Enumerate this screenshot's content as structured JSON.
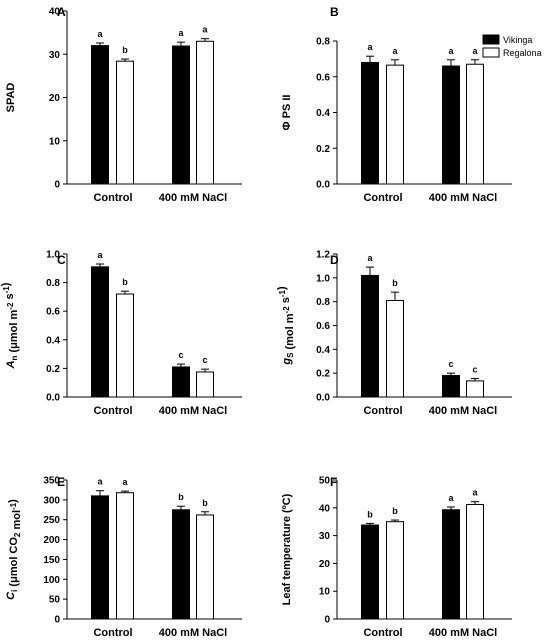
{
  "legend": [
    {
      "name": "Vikinga",
      "color": "#000000"
    },
    {
      "name": "Regalona",
      "color": "#ffffff"
    }
  ],
  "chart_data": [
    {
      "type": "bar",
      "panel": "A",
      "ylabel": "SPAD",
      "categories": [
        "Control",
        "400 mM NaCl"
      ],
      "ylim": [
        0,
        40
      ],
      "yticks": [
        0,
        10,
        20,
        30,
        40
      ],
      "yticklabels": [
        "0",
        "10",
        "20",
        "30",
        "40"
      ],
      "series": [
        {
          "name": "Vikinga",
          "values": [
            32.0,
            31.9
          ],
          "errors": [
            0.6,
            0.9
          ],
          "letters": [
            "a",
            "a"
          ]
        },
        {
          "name": "Regalona",
          "values": [
            28.4,
            33.0
          ],
          "errors": [
            0.5,
            0.6
          ],
          "letters": [
            "b",
            "a"
          ]
        }
      ]
    },
    {
      "type": "bar",
      "panel": "B",
      "ylabel": "Φ PS II",
      "categories": [
        "Control",
        "400 mM NaCl"
      ],
      "ylim": [
        0,
        0.8
      ],
      "yticks": [
        0,
        0.2,
        0.4,
        0.6,
        0.8
      ],
      "yticklabels": [
        "0.0",
        "0.2",
        "0.4",
        "0.6",
        "0.8"
      ],
      "legend_position": "top-right",
      "series": [
        {
          "name": "Vikinga",
          "values": [
            0.68,
            0.66
          ],
          "errors": [
            0.035,
            0.035
          ],
          "letters": [
            "a",
            "a"
          ]
        },
        {
          "name": "Regalona",
          "values": [
            0.665,
            0.67
          ],
          "errors": [
            0.03,
            0.025
          ],
          "letters": [
            "a",
            "a"
          ]
        }
      ]
    },
    {
      "type": "bar",
      "panel": "C",
      "ylabel_parts": [
        [
          "A",
          "i"
        ],
        [
          "n",
          "sub"
        ],
        [
          " (μmol m",
          ""
        ],
        [
          "-2",
          "sup"
        ],
        [
          " s",
          ""
        ],
        [
          "-1",
          "sup"
        ],
        [
          ")",
          ""
        ]
      ],
      "categories": [
        "Control",
        "400 mM NaCl"
      ],
      "ylim": [
        0,
        1.0
      ],
      "yticks": [
        0,
        0.2,
        0.4,
        0.6,
        0.8,
        1.0
      ],
      "yticklabels": [
        "0.0",
        "0.2",
        "0.4",
        "0.6",
        "0.8",
        "1.0"
      ],
      "series": [
        {
          "name": "Vikinga",
          "values": [
            0.91,
            0.21
          ],
          "errors": [
            0.02,
            0.02
          ],
          "letters": [
            "a",
            "c"
          ]
        },
        {
          "name": "Regalona",
          "values": [
            0.72,
            0.175
          ],
          "errors": [
            0.02,
            0.02
          ],
          "letters": [
            "b",
            "c"
          ]
        }
      ]
    },
    {
      "type": "bar",
      "panel": "D",
      "ylabel_parts": [
        [
          "g",
          "i"
        ],
        [
          "S",
          "sub"
        ],
        [
          " (mol m",
          ""
        ],
        [
          "-2",
          "sup"
        ],
        [
          " s",
          ""
        ],
        [
          "-1",
          "sup"
        ],
        [
          ")",
          ""
        ]
      ],
      "categories": [
        "Control",
        "400 mM NaCl"
      ],
      "ylim": [
        0,
        1.2
      ],
      "yticks": [
        0,
        0.2,
        0.4,
        0.6,
        0.8,
        1.0,
        1.2
      ],
      "yticklabels": [
        "0.0",
        "0.2",
        "0.4",
        "0.6",
        "0.8",
        "1.0",
        "1.2"
      ],
      "series": [
        {
          "name": "Vikinga",
          "values": [
            1.02,
            0.18
          ],
          "errors": [
            0.07,
            0.02
          ],
          "letters": [
            "a",
            "c"
          ]
        },
        {
          "name": "Regalona",
          "values": [
            0.81,
            0.135
          ],
          "errors": [
            0.07,
            0.02
          ],
          "letters": [
            "b",
            "c"
          ]
        }
      ]
    },
    {
      "type": "bar",
      "panel": "E",
      "ylabel_parts": [
        [
          "C",
          "i"
        ],
        [
          "i",
          "sub"
        ],
        [
          " (μmol CO",
          ""
        ],
        [
          "2",
          "sub"
        ],
        [
          " mol",
          ""
        ],
        [
          "-1",
          "sup"
        ],
        [
          ")",
          ""
        ]
      ],
      "categories": [
        "Control",
        "400 mM NaCl"
      ],
      "ylim": [
        0,
        350
      ],
      "yticks": [
        0,
        50,
        100,
        150,
        200,
        250,
        300,
        350
      ],
      "yticklabels": [
        "0",
        "50",
        "100",
        "150",
        "200",
        "250",
        "300",
        "350"
      ],
      "series": [
        {
          "name": "Vikinga",
          "values": [
            310,
            275
          ],
          "errors": [
            13,
            9
          ],
          "letters": [
            "a",
            "b"
          ]
        },
        {
          "name": "Regalona",
          "values": [
            318,
            262
          ],
          "errors": [
            4,
            8
          ],
          "letters": [
            "a",
            "b"
          ]
        }
      ]
    },
    {
      "type": "bar",
      "panel": "F",
      "ylabel": "Leaf temperature (ºC)",
      "categories": [
        "Control",
        "400 mM NaCl"
      ],
      "ylim": [
        0,
        50
      ],
      "yticks": [
        0,
        10,
        20,
        30,
        40,
        50
      ],
      "yticklabels": [
        "0",
        "10",
        "20",
        "30",
        "40",
        "50"
      ],
      "series": [
        {
          "name": "Vikinga",
          "values": [
            33.8,
            39.3
          ],
          "errors": [
            0.6,
            1.0
          ],
          "letters": [
            "b",
            "a"
          ]
        },
        {
          "name": "Regalona",
          "values": [
            35.0,
            41.2
          ],
          "errors": [
            0.6,
            1.0
          ],
          "letters": [
            "b",
            "a"
          ]
        }
      ]
    }
  ]
}
